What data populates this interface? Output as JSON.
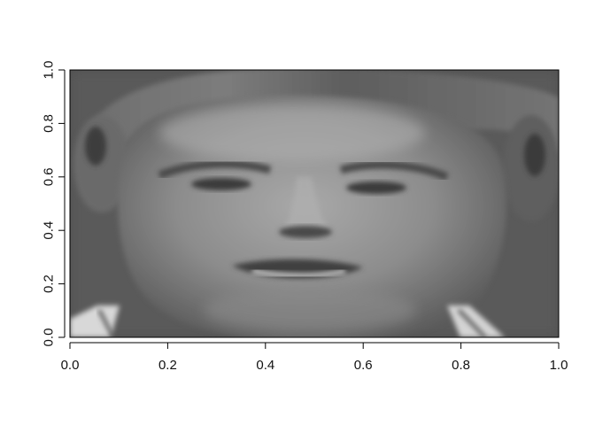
{
  "chart_data": {
    "type": "heatmap",
    "title": "",
    "xlabel": "",
    "ylabel": "",
    "colormap": "grayscale",
    "xlim": [
      0.0,
      1.0
    ],
    "ylim": [
      0.0,
      1.0
    ],
    "x_ticks": [
      "0.0",
      "0.2",
      "0.4",
      "0.6",
      "0.8",
      "1.0"
    ],
    "y_ticks": [
      "0.0",
      "0.2",
      "0.4",
      "0.6",
      "0.8",
      "1.0"
    ],
    "grid": false,
    "legend": "none",
    "image_subject": "grayscale face image"
  }
}
